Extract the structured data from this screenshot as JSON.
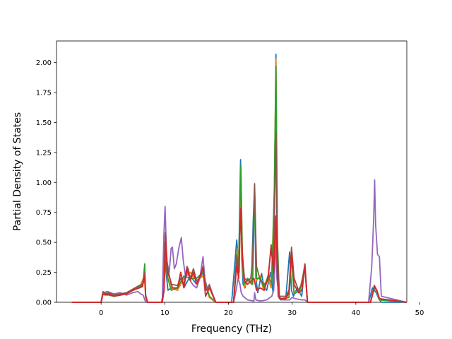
{
  "chart_data": {
    "type": "line",
    "title": "",
    "xlabel": "Frequency (THz)",
    "ylabel": "Partial Density of States",
    "xlim": [
      -7.0,
      48.0
    ],
    "ylim": [
      0.0,
      2.18
    ],
    "x_ticks": [
      0,
      10,
      20,
      30,
      40,
      50
    ],
    "x_tick_labels": [
      "0",
      "10",
      "20",
      "30",
      "40",
      "50"
    ],
    "y_ticks": [
      0.0,
      0.25,
      0.5,
      0.75,
      1.0,
      1.25,
      1.5,
      1.75,
      2.0
    ],
    "y_tick_labels": [
      "0.00",
      "0.25",
      "0.50",
      "0.75",
      "1.00",
      "1.25",
      "1.50",
      "1.75",
      "2.00"
    ],
    "grid": false,
    "legend": "none",
    "series": [
      {
        "color": "#1f77b4",
        "x": [
          -4.6,
          0.0,
          0.2,
          0.5,
          1.0,
          1.5,
          2.0,
          3.0,
          4.0,
          5.0,
          5.8,
          6.5,
          6.8,
          7.0,
          7.2,
          7.5,
          9.5,
          9.8,
          10.0,
          10.2,
          10.5,
          11.0,
          12.0,
          12.5,
          13.0,
          14.0,
          15.0,
          16.0,
          17.0,
          18.0,
          20.5,
          21.3,
          21.6,
          21.9,
          22.1,
          22.3,
          22.6,
          23.0,
          23.6,
          23.9,
          24.1,
          24.3,
          24.6,
          25.2,
          25.6,
          26.0,
          26.6,
          27.0,
          27.3,
          27.45,
          27.6,
          27.8,
          28.2,
          29.0,
          29.6,
          29.9,
          30.2,
          30.8,
          31.5,
          32.0,
          32.4,
          42.0,
          42.6,
          42.9,
          43.2,
          43.6,
          44.0,
          48.0
        ],
        "y": [
          0.0,
          0.0,
          0.06,
          0.07,
          0.06,
          0.07,
          0.05,
          0.06,
          0.08,
          0.1,
          0.12,
          0.14,
          0.26,
          0.05,
          0.0,
          0.0,
          0.0,
          0.1,
          0.5,
          0.25,
          0.1,
          0.12,
          0.1,
          0.25,
          0.12,
          0.22,
          0.15,
          0.25,
          0.05,
          0.0,
          0.0,
          0.52,
          0.3,
          1.19,
          0.35,
          0.15,
          0.12,
          0.2,
          0.15,
          0.7,
          0.97,
          0.2,
          0.08,
          0.24,
          0.12,
          0.1,
          0.25,
          0.08,
          1.0,
          2.07,
          0.6,
          0.05,
          0.02,
          0.03,
          0.42,
          0.1,
          0.05,
          0.12,
          0.05,
          0.32,
          0.0,
          0.0,
          0.12,
          0.1,
          0.08,
          0.03,
          0.0,
          0.0
        ]
      },
      {
        "color": "#ff7f0e",
        "x": [
          -4.6,
          0.0,
          0.3,
          0.6,
          1.2,
          2.0,
          3.0,
          4.0,
          5.0,
          6.0,
          6.8,
          7.0,
          7.3,
          9.6,
          9.9,
          10.1,
          10.4,
          11.0,
          12.0,
          13.0,
          14.0,
          15.0,
          16.0,
          17.0,
          18.0,
          20.8,
          21.4,
          21.7,
          21.95,
          22.2,
          22.5,
          23.0,
          23.7,
          24.1,
          24.4,
          25.0,
          25.5,
          26.2,
          26.7,
          27.2,
          27.45,
          27.7,
          28.0,
          29.5,
          29.9,
          30.3,
          31.2,
          32.0,
          32.4,
          42.3,
          42.9,
          43.3,
          43.7,
          48.0
        ],
        "y": [
          0.0,
          0.0,
          0.08,
          0.06,
          0.07,
          0.05,
          0.06,
          0.07,
          0.1,
          0.12,
          0.22,
          0.04,
          0.0,
          0.0,
          0.15,
          0.55,
          0.2,
          0.12,
          0.1,
          0.2,
          0.25,
          0.18,
          0.22,
          0.04,
          0.0,
          0.0,
          0.45,
          0.25,
          1.1,
          0.3,
          0.12,
          0.18,
          0.15,
          0.95,
          0.18,
          0.22,
          0.1,
          0.2,
          0.12,
          0.9,
          2.03,
          0.4,
          0.03,
          0.04,
          0.4,
          0.08,
          0.1,
          0.3,
          0.0,
          0.0,
          0.14,
          0.09,
          0.02,
          0.0
        ]
      },
      {
        "color": "#2ca02c",
        "x": [
          -4.6,
          0.0,
          0.3,
          0.7,
          1.2,
          2.0,
          3.0,
          4.0,
          5.0,
          6.0,
          6.6,
          6.85,
          7.0,
          7.3,
          9.6,
          9.9,
          10.1,
          10.4,
          11.0,
          12.0,
          13.0,
          14.0,
          15.0,
          16.0,
          17.0,
          18.0,
          20.8,
          21.3,
          21.6,
          21.95,
          22.2,
          22.5,
          23.0,
          23.8,
          24.1,
          24.4,
          25.0,
          25.6,
          26.2,
          26.8,
          27.2,
          27.45,
          27.7,
          28.0,
          29.5,
          29.9,
          30.3,
          31.2,
          32.0,
          32.4,
          42.3,
          42.9,
          43.3,
          43.7,
          48.0
        ],
        "y": [
          0.0,
          0.0,
          0.07,
          0.08,
          0.06,
          0.05,
          0.06,
          0.07,
          0.11,
          0.13,
          0.16,
          0.32,
          0.05,
          0.0,
          0.0,
          0.12,
          0.52,
          0.22,
          0.1,
          0.12,
          0.22,
          0.2,
          0.2,
          0.25,
          0.05,
          0.0,
          0.0,
          0.4,
          0.3,
          1.14,
          0.32,
          0.15,
          0.2,
          0.15,
          0.92,
          0.2,
          0.2,
          0.12,
          0.22,
          0.15,
          0.95,
          1.97,
          0.5,
          0.03,
          0.04,
          0.38,
          0.07,
          0.1,
          0.28,
          0.0,
          0.0,
          0.12,
          0.1,
          0.02,
          0.0
        ]
      },
      {
        "color": "#9467bd",
        "x": [
          -4.6,
          0.0,
          0.3,
          1.0,
          2.0,
          3.0,
          4.0,
          5.0,
          5.8,
          6.2,
          6.6,
          7.0,
          9.6,
          9.85,
          10.05,
          10.3,
          10.7,
          11.0,
          11.2,
          11.5,
          11.8,
          12.2,
          12.6,
          12.9,
          13.3,
          13.7,
          14.0,
          14.5,
          15.0,
          15.5,
          16.0,
          16.3,
          16.6,
          17.0,
          17.4,
          18.0,
          20.8,
          21.2,
          21.5,
          21.8,
          22.0,
          22.3,
          23.0,
          24.0,
          24.1,
          24.3,
          25.0,
          26.0,
          26.8,
          27.1,
          27.3,
          27.45,
          27.6,
          27.9,
          28.5,
          29.6,
          30.0,
          30.5,
          31.5,
          32.0,
          32.4,
          42.0,
          42.5,
          42.8,
          42.95,
          43.1,
          43.4,
          43.7,
          44.0,
          48.0
        ],
        "y": [
          0.0,
          0.0,
          0.08,
          0.09,
          0.07,
          0.08,
          0.06,
          0.08,
          0.09,
          0.07,
          0.06,
          0.0,
          0.0,
          0.55,
          0.8,
          0.35,
          0.25,
          0.45,
          0.46,
          0.28,
          0.32,
          0.45,
          0.54,
          0.35,
          0.2,
          0.28,
          0.18,
          0.14,
          0.12,
          0.2,
          0.38,
          0.2,
          0.1,
          0.15,
          0.08,
          0.0,
          0.0,
          0.1,
          0.2,
          0.15,
          0.08,
          0.05,
          0.02,
          0.01,
          0.08,
          0.02,
          0.01,
          0.02,
          0.05,
          0.1,
          0.3,
          0.6,
          0.2,
          0.05,
          0.02,
          0.02,
          0.04,
          0.03,
          0.02,
          0.02,
          0.0,
          0.0,
          0.3,
          0.7,
          1.02,
          0.65,
          0.4,
          0.38,
          0.05,
          0.0
        ]
      },
      {
        "color": "#8c564b",
        "x": [
          -4.6,
          0.0,
          0.3,
          0.7,
          1.2,
          2.0,
          3.0,
          4.0,
          5.0,
          6.0,
          6.5,
          6.85,
          7.0,
          7.3,
          9.6,
          9.9,
          10.1,
          10.4,
          11.0,
          12.0,
          12.5,
          13.0,
          13.5,
          14.0,
          14.5,
          15.0,
          15.5,
          16.0,
          16.5,
          17.0,
          18.0,
          20.8,
          21.3,
          21.6,
          21.9,
          22.2,
          22.5,
          23.0,
          23.5,
          23.8,
          24.1,
          24.4,
          25.0,
          25.6,
          26.2,
          26.7,
          27.1,
          27.45,
          27.7,
          28.0,
          29.0,
          29.5,
          29.9,
          30.3,
          31.0,
          31.5,
          32.0,
          32.4,
          42.3,
          42.9,
          43.3,
          43.7,
          48.0
        ],
        "y": [
          0.0,
          0.0,
          0.09,
          0.07,
          0.08,
          0.06,
          0.07,
          0.08,
          0.11,
          0.14,
          0.15,
          0.25,
          0.06,
          0.0,
          0.0,
          0.12,
          0.58,
          0.3,
          0.15,
          0.14,
          0.2,
          0.15,
          0.3,
          0.2,
          0.28,
          0.18,
          0.2,
          0.3,
          0.1,
          0.14,
          0.0,
          0.0,
          0.38,
          0.2,
          0.75,
          0.4,
          0.2,
          0.18,
          0.2,
          0.35,
          0.99,
          0.3,
          0.18,
          0.15,
          0.18,
          0.48,
          0.3,
          1.42,
          0.4,
          0.05,
          0.05,
          0.1,
          0.46,
          0.2,
          0.1,
          0.15,
          0.32,
          0.0,
          0.0,
          0.12,
          0.1,
          0.03,
          0.0
        ]
      },
      {
        "color": "#d62728",
        "x": [
          -4.6,
          0.0,
          0.3,
          0.7,
          1.2,
          2.0,
          3.0,
          4.0,
          5.0,
          6.0,
          6.5,
          6.85,
          7.0,
          7.3,
          9.6,
          9.9,
          10.1,
          10.4,
          10.8,
          11.2,
          12.0,
          12.5,
          13.0,
          13.5,
          14.0,
          14.5,
          15.0,
          15.5,
          16.0,
          16.4,
          17.0,
          18.0,
          20.8,
          21.3,
          21.6,
          21.9,
          22.2,
          22.5,
          23.0,
          23.6,
          24.0,
          24.4,
          25.0,
          25.6,
          26.2,
          26.7,
          27.1,
          27.45,
          27.7,
          28.0,
          29.0,
          29.5,
          29.9,
          30.3,
          31.0,
          31.5,
          32.0,
          32.4,
          42.3,
          42.9,
          43.3,
          43.7,
          48.0
        ],
        "y": [
          0.0,
          0.0,
          0.07,
          0.06,
          0.07,
          0.05,
          0.06,
          0.07,
          0.1,
          0.12,
          0.13,
          0.22,
          0.05,
          0.0,
          0.0,
          0.1,
          0.55,
          0.25,
          0.2,
          0.12,
          0.12,
          0.25,
          0.12,
          0.28,
          0.18,
          0.25,
          0.15,
          0.22,
          0.28,
          0.05,
          0.12,
          0.0,
          0.0,
          0.3,
          0.2,
          0.78,
          0.35,
          0.18,
          0.15,
          0.18,
          0.2,
          0.1,
          0.12,
          0.1,
          0.2,
          0.45,
          0.25,
          0.72,
          0.2,
          0.03,
          0.03,
          0.08,
          0.42,
          0.15,
          0.08,
          0.1,
          0.3,
          0.0,
          0.0,
          0.14,
          0.1,
          0.03,
          0.0
        ]
      }
    ]
  }
}
